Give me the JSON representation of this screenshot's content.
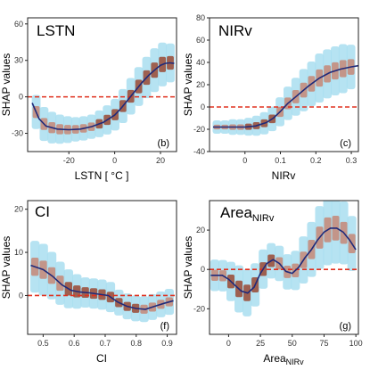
{
  "figure": {
    "colors": {
      "density_low": "#a9def0",
      "density_high": "#8b2a12",
      "fit_line": "#1f2a7a",
      "zero_line": "#e0301e",
      "frame": "#222222"
    }
  },
  "chart_data": [
    {
      "type": "scatter",
      "style": "hexbin density with smoothed fit line",
      "title": "LSTN",
      "xlabel": "LSTN [ °C ]",
      "ylabel": "SHAP values",
      "tag": "(b)",
      "xlim": [
        -38,
        27
      ],
      "ylim": [
        -45,
        65
      ],
      "xticks": [
        -20,
        0,
        20
      ],
      "yticks": [
        -30,
        0,
        30,
        60
      ],
      "ref_line_y": 0,
      "fit": {
        "x": [
          -36,
          -33,
          -30,
          -25,
          -20,
          -15,
          -10,
          -5,
          0,
          3,
          6,
          9,
          12,
          15,
          18,
          20,
          22,
          24,
          26
        ],
        "y": [
          -5,
          -18,
          -24,
          -26.5,
          -27,
          -26.5,
          -24.5,
          -21,
          -15,
          -9,
          -2,
          5,
          12,
          18,
          23,
          26,
          27.5,
          28,
          27.5
        ]
      },
      "density": {
        "bins": 18,
        "xspan": [
          -36,
          26
        ],
        "spread": [
          14,
          14,
          13,
          12,
          11,
          10,
          10,
          10,
          11,
          12,
          13,
          14,
          15,
          16,
          17,
          18,
          18,
          16
        ],
        "dark_from": 0.45
      }
    },
    {
      "type": "scatter",
      "style": "hexbin density with smoothed fit line",
      "title": "NIRv",
      "xlabel": "NIRv",
      "ylabel": "SHAP values",
      "tag": "(c)",
      "xlim": [
        -0.1,
        0.32
      ],
      "ylim": [
        -40,
        80
      ],
      "xticks": [
        0.0,
        0.1,
        0.2,
        0.3
      ],
      "yticks": [
        -40,
        -20,
        0,
        20,
        40,
        60,
        80
      ],
      "ref_line_y": 0,
      "fit": {
        "x": [
          -0.09,
          -0.05,
          0.0,
          0.03,
          0.06,
          0.08,
          0.1,
          0.12,
          0.15,
          0.18,
          0.21,
          0.24,
          0.27,
          0.3,
          0.32
        ],
        "y": [
          -18,
          -18,
          -18,
          -17,
          -14,
          -10,
          -4,
          3,
          11,
          19,
          26,
          31,
          34,
          36,
          37
        ]
      },
      "density": {
        "bins": 18,
        "xspan": [
          -0.09,
          0.31
        ],
        "spread": [
          6,
          6,
          7,
          7,
          8,
          9,
          10,
          11,
          13,
          15,
          17,
          19,
          20,
          22,
          22,
          22,
          22,
          20
        ],
        "dark_from": 0.2,
        "dark_to": 0.45
      }
    },
    {
      "type": "scatter",
      "style": "hexbin density with smoothed fit line",
      "title": "CI",
      "xlabel": "CI",
      "ylabel": "SHAP values",
      "tag": "(f)",
      "xlim": [
        0.45,
        0.93
      ],
      "ylim": [
        -9,
        22
      ],
      "xticks": [
        0.5,
        0.6,
        0.7,
        0.8,
        0.9
      ],
      "yticks": [
        0,
        10,
        20
      ],
      "ref_line_y": 0,
      "fit": {
        "x": [
          0.46,
          0.5,
          0.53,
          0.56,
          0.59,
          0.62,
          0.65,
          0.68,
          0.71,
          0.74,
          0.77,
          0.8,
          0.83,
          0.86,
          0.89,
          0.92
        ],
        "y": [
          7,
          6,
          4.5,
          2.5,
          1.2,
          0.8,
          0.6,
          0.3,
          0,
          -1.5,
          -2.5,
          -3,
          -3.2,
          -2.5,
          -1.8,
          -1.2
        ]
      },
      "density": {
        "bins": 17,
        "xspan": [
          0.46,
          0.92
        ],
        "spread": [
          6,
          6,
          5.5,
          5,
          4.5,
          4,
          3.5,
          3.5,
          3.5,
          3.5,
          3,
          3,
          3,
          3,
          3,
          3,
          3
        ],
        "dark_from": 0.2,
        "dark_to": 0.8
      }
    },
    {
      "type": "scatter",
      "style": "hexbin density with smoothed fit line",
      "title": "Area",
      "title_sub": "NIRv",
      "xlabel": "Area",
      "xlabel_sub": "NIRv",
      "ylabel": "SHAP values",
      "tag": "(g)",
      "xlim": [
        -15,
        102
      ],
      "ylim": [
        -33,
        35
      ],
      "xticks": [
        0,
        25,
        50,
        75,
        100
      ],
      "yticks": [
        -20,
        0,
        20
      ],
      "ref_line_y": 0,
      "fit": {
        "x": [
          -14,
          -5,
          0,
          5,
          10,
          15,
          20,
          25,
          30,
          35,
          40,
          45,
          50,
          55,
          60,
          65,
          70,
          75,
          80,
          85,
          90,
          95,
          100
        ],
        "y": [
          -3,
          -3,
          -5,
          -8,
          -11,
          -12,
          -9,
          -2,
          3,
          5,
          3,
          -1,
          -2,
          1,
          6,
          10,
          15,
          19,
          21,
          21,
          19,
          15,
          10
        ]
      },
      "density": {
        "bins": 18,
        "xspan": [
          -14,
          100
        ],
        "spread": [
          8,
          8,
          10,
          12,
          12,
          11,
          10,
          9,
          9,
          9,
          10,
          12,
          14,
          16,
          18,
          18,
          16,
          14
        ],
        "dark_from": 0.1,
        "dark_to": 0.45
      }
    }
  ]
}
